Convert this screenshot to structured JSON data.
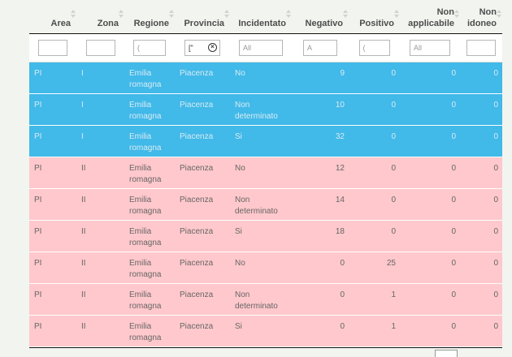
{
  "columns": [
    {
      "label": "Area"
    },
    {
      "label": "Zona"
    },
    {
      "label": "Regione"
    },
    {
      "label": "Provincia"
    },
    {
      "label": "Incidentato"
    },
    {
      "label": "Negativo"
    },
    {
      "label": "Positivo"
    },
    {
      "label": "Non applicabile"
    },
    {
      "label": "Non idoneo"
    }
  ],
  "filters": {
    "regione_value": "(",
    "provincia_value": "[\"",
    "incidentato_placeholder": "All",
    "negativo_value": "A",
    "positivo_value": "(",
    "non_applicabile_placeholder": "All"
  },
  "rows": [
    {
      "style": "blue",
      "area": "PI",
      "zona": "I",
      "regione": "Emilia romagna",
      "provincia": "Piacenza",
      "incidentato": "No",
      "negativo": "9",
      "positivo": "0",
      "non_applicabile": "0",
      "non_idoneo": "0"
    },
    {
      "style": "blue",
      "area": "PI",
      "zona": "I",
      "regione": "Emilia romagna",
      "provincia": "Piacenza",
      "incidentato": "Non determinato",
      "negativo": "10",
      "positivo": "0",
      "non_applicabile": "0",
      "non_idoneo": "0"
    },
    {
      "style": "blue",
      "area": "PI",
      "zona": "I",
      "regione": "Emilia romagna",
      "provincia": "Piacenza",
      "incidentato": "Si",
      "negativo": "32",
      "positivo": "0",
      "non_applicabile": "0",
      "non_idoneo": "0"
    },
    {
      "style": "pink",
      "area": "PI",
      "zona": "II",
      "regione": "Emilia romagna",
      "provincia": "Piacenza",
      "incidentato": "No",
      "negativo": "12",
      "positivo": "0",
      "non_applicabile": "0",
      "non_idoneo": "0"
    },
    {
      "style": "pink",
      "area": "PI",
      "zona": "II",
      "regione": "Emilia romagna",
      "provincia": "Piacenza",
      "incidentato": "Non determinato",
      "negativo": "14",
      "positivo": "0",
      "non_applicabile": "0",
      "non_idoneo": "0"
    },
    {
      "style": "pink",
      "area": "PI",
      "zona": "II",
      "regione": "Emilia romagna",
      "provincia": "Piacenza",
      "incidentato": "Si",
      "negativo": "18",
      "positivo": "0",
      "non_applicabile": "0",
      "non_idoneo": "0"
    },
    {
      "style": "pink",
      "area": "PI",
      "zona": "II",
      "regione": "Emilia romagna",
      "provincia": "Piacenza",
      "incidentato": "No",
      "negativo": "0",
      "positivo": "25",
      "non_applicabile": "0",
      "non_idoneo": "0"
    },
    {
      "style": "pink",
      "area": "PI",
      "zona": "II",
      "regione": "Emilia romagna",
      "provincia": "Piacenza",
      "incidentato": "Non determinato",
      "negativo": "0",
      "positivo": "1",
      "non_applicabile": "0",
      "non_idoneo": "0"
    },
    {
      "style": "pink",
      "area": "PI",
      "zona": "II",
      "regione": "Emilia romagna",
      "provincia": "Piacenza",
      "incidentato": "Si",
      "negativo": "0",
      "positivo": "1",
      "non_applicabile": "0",
      "non_idoneo": "0"
    }
  ],
  "colors": {
    "blue_row": "#41b9e9",
    "pink_row": "#ffc8cc",
    "background": "#f2f4ef"
  },
  "icons": {
    "clear_filter": "clear-circle-icon",
    "sort": "sort-arrows-icon"
  }
}
